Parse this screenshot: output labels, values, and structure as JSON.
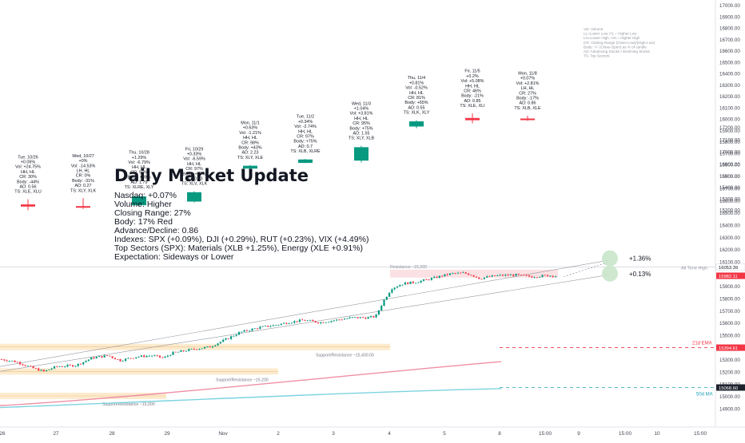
{
  "chart_data": [
    {
      "type": "candlestick",
      "panel": "daily",
      "colors": {
        "up": "#089981",
        "down": "#f23645"
      },
      "price_axis_ticks": [
        17000,
        16900,
        16800,
        16700,
        16600,
        16500,
        16400,
        16300,
        16200,
        16100,
        16000,
        15900,
        15800,
        15700,
        15600,
        15500,
        15400,
        15300,
        15200
      ],
      "candles": [
        {
          "date": "Tue, 10/26",
          "o": 15245,
          "h": 15290,
          "l": 15195,
          "c": 15226,
          "dir": "down",
          "stats": [
            "Tue, 10/26",
            "+0.06%",
            "Vol: +24.75%",
            "HH, HL",
            "CR: 30%",
            "Body: -44%",
            "AD: 0.56",
            "TS: XLE, XLU"
          ]
        },
        {
          "date": "Wed, 10/27",
          "o": 15230,
          "h": 15300,
          "l": 15205,
          "c": 15222,
          "dir": "down",
          "stats": [
            "Wed, 10/27",
            "+0%",
            "Vol: -14.53%",
            "LH, HL",
            "CR: 0%",
            "Body: -31%",
            "AD: 0.27",
            "TS: XLY, XLK"
          ]
        },
        {
          "date": "Thu, 10/28",
          "o": 15238,
          "h": 15330,
          "l": 15225,
          "c": 15315,
          "dir": "up",
          "stats": [
            "Thu, 10/28",
            "+1.29%",
            "Vol: -6.79%",
            "HH, HL",
            "CR: 97%",
            "Body: +89%",
            "AD: 1.79",
            "TS: XLRE, XLY"
          ]
        },
        {
          "date": "Fri, 10/29",
          "o": 15270,
          "h": 15360,
          "l": 15262,
          "c": 15352,
          "dir": "up",
          "stats": [
            "Fri, 10/29",
            "+0.33%",
            "Vol: -6.59%",
            "HH, HL",
            "CR: 97%",
            "Body: +97%",
            "AD: 0.73",
            "TS: XLV, XLK"
          ]
        },
        {
          "date": "Mon, 11/1",
          "o": 15560,
          "h": 15590,
          "l": 15530,
          "c": 15585,
          "dir": "up",
          "stats": [
            "Mon, 11/1",
            "+0.63%",
            "Vol: -1.21%",
            "HH, HL",
            "CR: 98%",
            "Body: +43%",
            "AD: 2.23",
            "TS: XLY, XLE"
          ]
        },
        {
          "date": "Tue, 11/2",
          "o": 15610,
          "h": 15645,
          "l": 15608,
          "c": 15640,
          "dir": "up",
          "stats": [
            "Tue, 11/2",
            "+0.34%",
            "Vol: -2.74%",
            "HH, HL",
            "CR: 97%",
            "Body: +75%",
            "AD: 0.7",
            "TS: XLB, XLRE"
          ]
        },
        {
          "date": "Wed, 11/3",
          "o": 15630,
          "h": 15760,
          "l": 15615,
          "c": 15748,
          "dir": "up",
          "stats": [
            "Wed, 11/3",
            "+1.04%",
            "Vol: +3.81%",
            "HH, HL",
            "CR: 95%",
            "Body: +75%",
            "AD: 1.55",
            "TS: XLY, XLB"
          ]
        },
        {
          "date": "Thu, 11/4",
          "o": 15930,
          "h": 15985,
          "l": 15915,
          "c": 15975,
          "dir": "up",
          "stats": [
            "Thu, 11/4",
            "+0.81%",
            "Vol: -0.52%",
            "HH, HL",
            "CR: 81%",
            "Body: +65%",
            "AD: 0.55",
            "TS: XLK, XLY"
          ]
        },
        {
          "date": "Fri, 11/5",
          "o": 16005,
          "h": 16045,
          "l": 15958,
          "c": 15985,
          "dir": "down",
          "stats": [
            "Fri, 11/5",
            "+0.2%",
            "Vol: +5.08%",
            "HH, HL",
            "CR: 46%",
            "Body: -21%",
            "AD: 0.85",
            "TS: XLE, XLI"
          ]
        },
        {
          "date": "Mon, 11/8",
          "o": 16000,
          "h": 16025,
          "l": 15980,
          "c": 15992,
          "dir": "down",
          "stats": [
            "Mon, 11/8",
            "+0.07%",
            "Vol: +2.81%",
            "LH, HL",
            "CR: 27%",
            "Body: -17%",
            "AD: 0.86",
            "TS: XLB, XLE"
          ]
        }
      ],
      "legend_notes": [
        "Vol: Volume",
        "LL=Lower Low, HL = Higher Low",
        "LH=Lower High, HH = Higher High",
        "CR: Closing Range (Close-Low)/(High-Low)",
        "Body: +/- (Close-Open) as % of candle",
        "AD: Advancing Stocks / Declining Stocks",
        "TS: Top Sectors"
      ]
    },
    {
      "type": "candlestick",
      "panel": "intraday",
      "price_axis_ticks": [
        17200,
        17100,
        17000,
        16900,
        16800,
        16700,
        16600,
        16500,
        16400,
        16300,
        16200,
        16100,
        16000,
        15900,
        15800,
        15700,
        15600,
        15500,
        15400,
        15300,
        15200,
        15100,
        15000,
        14900
      ],
      "x_axis_ticks": [
        "26",
        "27",
        "28",
        "29",
        "Nov",
        "2",
        "3",
        "4",
        "5",
        "8",
        "15:00",
        "9",
        "15:00",
        "10",
        "15:00"
      ],
      "price_labels": [
        {
          "text": "16053.39",
          "value": 16053.39
        },
        {
          "text": "15982.36",
          "value": 15982.36,
          "color": "#f23645"
        },
        {
          "text": "15982.11",
          "value": 15982.11,
          "color": "#f23645"
        },
        {
          "text": "15394.61",
          "value": 15394.61,
          "color": "#f23645"
        },
        {
          "text": "15068.60",
          "value": 15068.6,
          "color": "#1e222d"
        }
      ],
      "levels": [
        {
          "label": "Resistance ~16,000",
          "value": 16000
        },
        {
          "label": "Support/Resistance ~15,400.00",
          "value": 15400
        },
        {
          "label": "Support/Resistance ~15,200",
          "value": 15200
        },
        {
          "label": "Support/Resistance ~15,000",
          "value": 15000
        }
      ],
      "annotations": [
        {
          "text": "+1.36%"
        },
        {
          "text": "+0.13%"
        },
        {
          "text": "All Time High"
        },
        {
          "text": "21d EMA",
          "color": "#f23645"
        },
        {
          "text": "50d MA",
          "color": "#1da0b7"
        }
      ],
      "indicators": [
        {
          "name": "21d EMA",
          "color": "#ef8fa5",
          "label_color": "#f23645",
          "value": 15394.61
        },
        {
          "name": "50d MA",
          "color": "#7dd3e0",
          "label_color": "#1da0b7",
          "value": 15068.6
        }
      ]
    }
  ],
  "update": {
    "title": "Daily Market Update",
    "lines": [
      "Nasdaq: +0.07%",
      "Volume: Higher",
      "Closing Range: 27%",
      "Body: 17% Red",
      "Advance/Decline: 0.86",
      "Indexes: SPX (+0.09%), DJI (+0.29%), RUT (+0.23%), VIX (+4.49%)",
      "Top Sectors (SPX): Materials (XLB +1.25%), Energy (XLE +0.91%)",
      "Expectation: Sideways or Lower"
    ]
  }
}
